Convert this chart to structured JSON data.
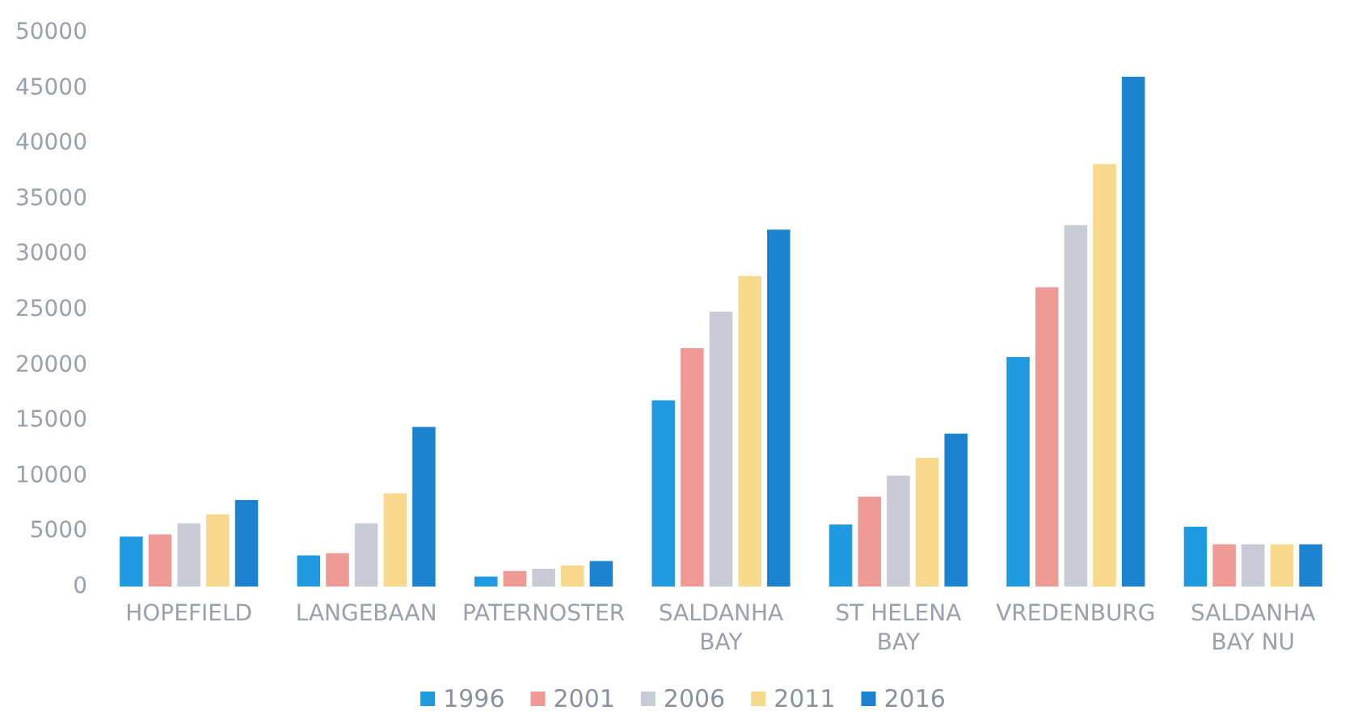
{
  "chart_data": {
    "type": "bar",
    "categories": [
      "HOPEFIELD",
      "LANGEBAAN",
      "PATERNOSTER",
      "SALDANHA BAY",
      "ST HELENA BAY",
      "VREDENBURG",
      "SALDANHA BAY NU"
    ],
    "series": [
      {
        "name": "1996",
        "color": "#1f9ae0",
        "values": [
          4500,
          2800,
          900,
          16800,
          5600,
          20700,
          5400
        ]
      },
      {
        "name": "2001",
        "color": "#ef9a94",
        "values": [
          4700,
          3000,
          1400,
          21500,
          8100,
          27000,
          3800
        ]
      },
      {
        "name": "2006",
        "color": "#c8cbd6",
        "values": [
          5700,
          5700,
          1600,
          24800,
          10000,
          32600,
          3800
        ]
      },
      {
        "name": "2011",
        "color": "#f8d88a",
        "values": [
          6500,
          8400,
          1900,
          28000,
          11600,
          38100,
          3800
        ]
      },
      {
        "name": "2016",
        "color": "#1a82cf",
        "values": [
          7800,
          14400,
          2300,
          32200,
          13800,
          46000,
          3800
        ]
      }
    ],
    "ylim": [
      0,
      50000
    ],
    "yticks": [
      0,
      5000,
      10000,
      15000,
      20000,
      25000,
      30000,
      35000,
      40000,
      45000,
      50000
    ],
    "grid": false,
    "legend": "bottom"
  }
}
